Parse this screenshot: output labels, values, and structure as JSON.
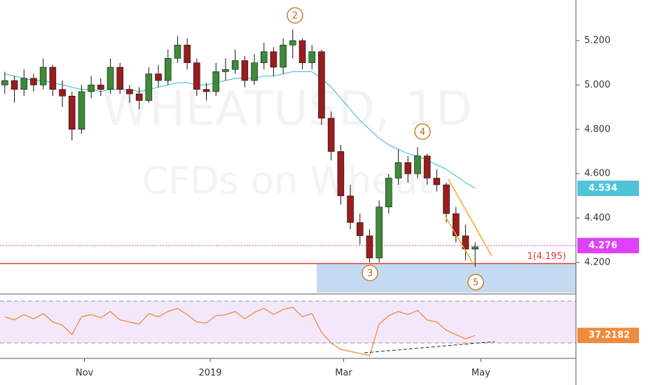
{
  "watermark": {
    "symbol": "WHEATUSD, 1D",
    "description": "CFDs on Wheat"
  },
  "waves": [
    "2",
    "3",
    "4",
    "5"
  ],
  "chart_data": [
    {
      "type": "candlestick",
      "x": [
        0,
        1,
        2,
        3,
        4,
        5,
        6,
        7,
        8,
        9,
        10,
        11,
        12,
        13,
        14,
        15,
        16,
        17,
        18,
        19,
        20,
        21,
        22,
        23,
        24,
        25,
        26,
        27,
        28,
        29,
        30,
        31,
        32,
        33,
        34,
        35,
        36,
        37,
        38,
        39,
        40,
        41,
        42,
        43,
        44,
        45,
        46,
        47,
        48,
        49
      ],
      "ohlc": [
        [
          5.0,
          5.06,
          4.96,
          5.02
        ],
        [
          5.02,
          5.04,
          4.92,
          4.98
        ],
        [
          4.98,
          5.07,
          4.95,
          5.03
        ],
        [
          5.03,
          5.05,
          4.97,
          5.0
        ],
        [
          5.0,
          5.12,
          4.98,
          5.08
        ],
        [
          5.08,
          5.09,
          4.95,
          4.98
        ],
        [
          4.98,
          5.02,
          4.9,
          4.95
        ],
        [
          4.95,
          4.97,
          4.75,
          4.8
        ],
        [
          4.8,
          5.0,
          4.78,
          4.97
        ],
        [
          4.97,
          5.04,
          4.94,
          5.0
        ],
        [
          5.0,
          5.03,
          4.95,
          4.98
        ],
        [
          4.98,
          5.12,
          4.96,
          5.08
        ],
        [
          5.08,
          5.1,
          4.96,
          4.98
        ],
        [
          4.98,
          5.0,
          4.92,
          4.96
        ],
        [
          4.96,
          4.99,
          4.89,
          4.93
        ],
        [
          4.93,
          5.08,
          4.92,
          5.05
        ],
        [
          5.05,
          5.09,
          4.99,
          5.02
        ],
        [
          5.02,
          5.16,
          5.0,
          5.12
        ],
        [
          5.12,
          5.22,
          5.1,
          5.18
        ],
        [
          5.18,
          5.21,
          5.07,
          5.1
        ],
        [
          5.1,
          5.12,
          4.95,
          4.98
        ],
        [
          4.98,
          5.01,
          4.93,
          4.97
        ],
        [
          4.97,
          5.1,
          4.95,
          5.06
        ],
        [
          5.06,
          5.12,
          5.02,
          5.07
        ],
        [
          5.07,
          5.16,
          5.05,
          5.11
        ],
        [
          5.11,
          5.13,
          4.99,
          5.02
        ],
        [
          5.02,
          5.14,
          5.0,
          5.1
        ],
        [
          5.1,
          5.19,
          5.07,
          5.15
        ],
        [
          5.15,
          5.17,
          5.04,
          5.08
        ],
        [
          5.08,
          5.21,
          5.05,
          5.18
        ],
        [
          5.18,
          5.25,
          5.12,
          5.2
        ],
        [
          5.2,
          5.21,
          5.07,
          5.1
        ],
        [
          5.1,
          5.18,
          5.07,
          5.15
        ],
        [
          5.15,
          5.16,
          4.82,
          4.85
        ],
        [
          4.85,
          4.88,
          4.66,
          4.7
        ],
        [
          4.7,
          4.73,
          4.46,
          4.5
        ],
        [
          4.5,
          4.55,
          4.35,
          4.38
        ],
        [
          4.38,
          4.42,
          4.28,
          4.32
        ],
        [
          4.32,
          4.35,
          4.2,
          4.22
        ],
        [
          4.22,
          4.48,
          4.2,
          4.45
        ],
        [
          4.45,
          4.6,
          4.42,
          4.58
        ],
        [
          4.58,
          4.71,
          4.55,
          4.65
        ],
        [
          4.65,
          4.68,
          4.56,
          4.6
        ],
        [
          4.6,
          4.72,
          4.58,
          4.68
        ],
        [
          4.68,
          4.69,
          4.55,
          4.58
        ],
        [
          4.58,
          4.62,
          4.52,
          4.55
        ],
        [
          4.55,
          4.56,
          4.38,
          4.42
        ],
        [
          4.42,
          4.45,
          4.29,
          4.32
        ],
        [
          4.32,
          4.37,
          4.21,
          4.26
        ],
        [
          4.26,
          4.29,
          4.18,
          4.27
        ]
      ],
      "up_color": "#3d8b37",
      "down_color": "#9b1c1c",
      "ma": {
        "color": "#4fc3d9",
        "last_label": "4.534",
        "values": [
          5.05,
          5.04,
          5.03,
          5.02,
          5.02,
          5.01,
          5.0,
          4.99,
          4.98,
          4.98,
          4.97,
          4.98,
          4.98,
          4.98,
          4.97,
          4.98,
          4.99,
          5.0,
          5.01,
          5.01,
          5.0,
          5.0,
          5.01,
          5.02,
          5.03,
          5.03,
          5.03,
          5.04,
          5.04,
          5.05,
          5.06,
          5.06,
          5.06,
          5.03,
          4.99,
          4.94,
          4.89,
          4.84,
          4.8,
          4.76,
          4.73,
          4.71,
          4.69,
          4.68,
          4.66,
          4.64,
          4.62,
          4.59,
          4.56,
          4.534
        ]
      },
      "price_line": {
        "value": 4.276,
        "label": "4.276",
        "color": "#e040fb"
      },
      "level": {
        "value": 4.195,
        "label": "1(4.195)",
        "color": "#e53935"
      },
      "zone": {
        "from_x": 32.5,
        "top": 4.195,
        "color": "#b9d3f0"
      },
      "xlim": [
        -0.5,
        59.5
      ],
      "xticks": [
        {
          "value": 8.3,
          "label": "Nov"
        },
        {
          "value": 21.4,
          "label": "2019"
        },
        {
          "value": 35.3,
          "label": "Mar"
        },
        {
          "value": 49.6,
          "label": "May"
        }
      ],
      "ylim": [
        4.064,
        5.383
      ],
      "yticks": [
        {
          "value": 4.2,
          "label": "4.200"
        },
        {
          "value": 4.4,
          "label": "4.400"
        },
        {
          "value": 4.6,
          "label": "4.600"
        },
        {
          "value": 4.8,
          "label": "4.800"
        },
        {
          "value": 5.0,
          "label": "5.000"
        },
        {
          "value": 5.2,
          "label": "5.200"
        }
      ]
    },
    {
      "type": "line",
      "values": [
        55,
        52,
        57,
        53,
        58,
        50,
        47,
        38,
        55,
        57,
        54,
        60,
        52,
        50,
        48,
        58,
        55,
        60,
        63,
        57,
        50,
        49,
        56,
        57,
        60,
        53,
        59,
        63,
        57,
        62,
        64,
        55,
        58,
        40,
        30,
        24,
        22,
        20,
        18,
        48,
        56,
        60,
        57,
        61,
        52,
        50,
        42,
        38,
        34,
        37.2182
      ],
      "color": "#f08a3c",
      "last_label": "37.2182",
      "levels": [
        70,
        30
      ],
      "ylim": [
        16.7,
        71.3
      ]
    }
  ]
}
